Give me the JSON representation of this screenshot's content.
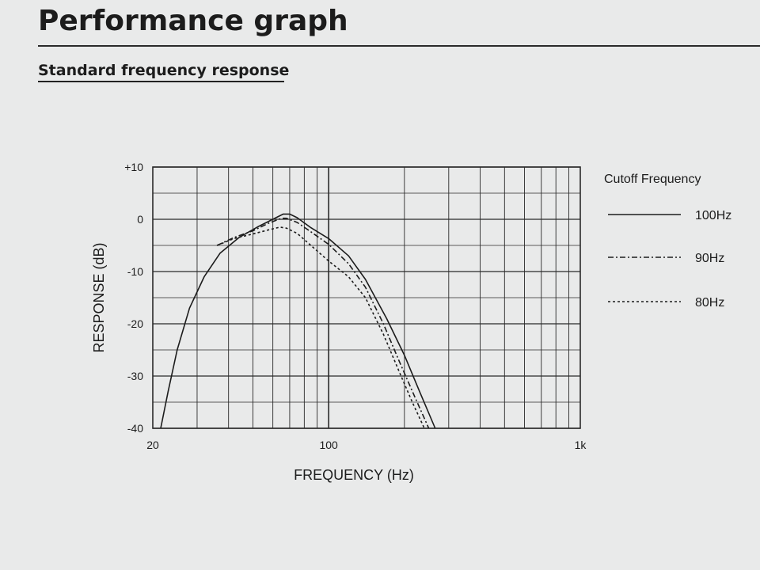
{
  "page": {
    "title": "Performance graph",
    "section_title": "Standard frequency response"
  },
  "colors": {
    "ink": "#1c1c1c",
    "grid": "#2a2a2a",
    "background": "#e9eaea"
  },
  "chart_data": {
    "type": "line",
    "xlabel": "FREQUENCY  (Hz)",
    "ylabel": "RESPONSE (dB)",
    "x_scale": "log",
    "xlim": [
      20,
      1000
    ],
    "ylim": [
      -40,
      10
    ],
    "x_tick_labels": [
      {
        "value": 20,
        "label": "20"
      },
      {
        "value": 100,
        "label": "100"
      },
      {
        "value": 1000,
        "label": "1k"
      }
    ],
    "y_tick_labels": [
      {
        "value": 10,
        "label": "+10"
      },
      {
        "value": 0,
        "label": "0"
      },
      {
        "value": -10,
        "label": "-10"
      },
      {
        "value": -20,
        "label": "-20"
      },
      {
        "value": -30,
        "label": "-30"
      },
      {
        "value": -40,
        "label": "-40"
      }
    ],
    "grid": true,
    "legend_title": "Cutoff Frequency",
    "legend_position": "right",
    "series": [
      {
        "name": "100Hz",
        "line_style": "solid",
        "points": [
          [
            21.5,
            -40
          ],
          [
            23,
            -33
          ],
          [
            25,
            -25
          ],
          [
            28,
            -17
          ],
          [
            32,
            -11
          ],
          [
            37,
            -6.5
          ],
          [
            44,
            -3.5
          ],
          [
            52,
            -1.5
          ],
          [
            60,
            0
          ],
          [
            66,
            1
          ],
          [
            70,
            1
          ],
          [
            75,
            0.3
          ],
          [
            85,
            -1.6
          ],
          [
            100,
            -3.7
          ],
          [
            120,
            -7
          ],
          [
            140,
            -11.5
          ],
          [
            170,
            -19
          ],
          [
            200,
            -26
          ],
          [
            230,
            -33
          ],
          [
            265,
            -40
          ]
        ]
      },
      {
        "name": "90Hz",
        "line_style": "dashdot",
        "points": [
          [
            36,
            -5
          ],
          [
            42,
            -3.5
          ],
          [
            50,
            -2.2
          ],
          [
            58,
            -0.7
          ],
          [
            65,
            0.2
          ],
          [
            68,
            0.2
          ],
          [
            75,
            -0.6
          ],
          [
            85,
            -2.4
          ],
          [
            100,
            -4.8
          ],
          [
            120,
            -8.5
          ],
          [
            140,
            -13
          ],
          [
            165,
            -20
          ],
          [
            190,
            -27
          ],
          [
            220,
            -34
          ],
          [
            250,
            -40
          ]
        ]
      },
      {
        "name": "80Hz",
        "line_style": "dashed",
        "points": [
          [
            36,
            -5
          ],
          [
            42,
            -3.7
          ],
          [
            50,
            -2.8
          ],
          [
            58,
            -2
          ],
          [
            64,
            -1.5
          ],
          [
            68,
            -1.7
          ],
          [
            75,
            -2.7
          ],
          [
            85,
            -5
          ],
          [
            100,
            -8
          ],
          [
            120,
            -11
          ],
          [
            140,
            -15
          ],
          [
            165,
            -22
          ],
          [
            190,
            -29
          ],
          [
            215,
            -35
          ],
          [
            240,
            -40
          ]
        ]
      }
    ]
  }
}
